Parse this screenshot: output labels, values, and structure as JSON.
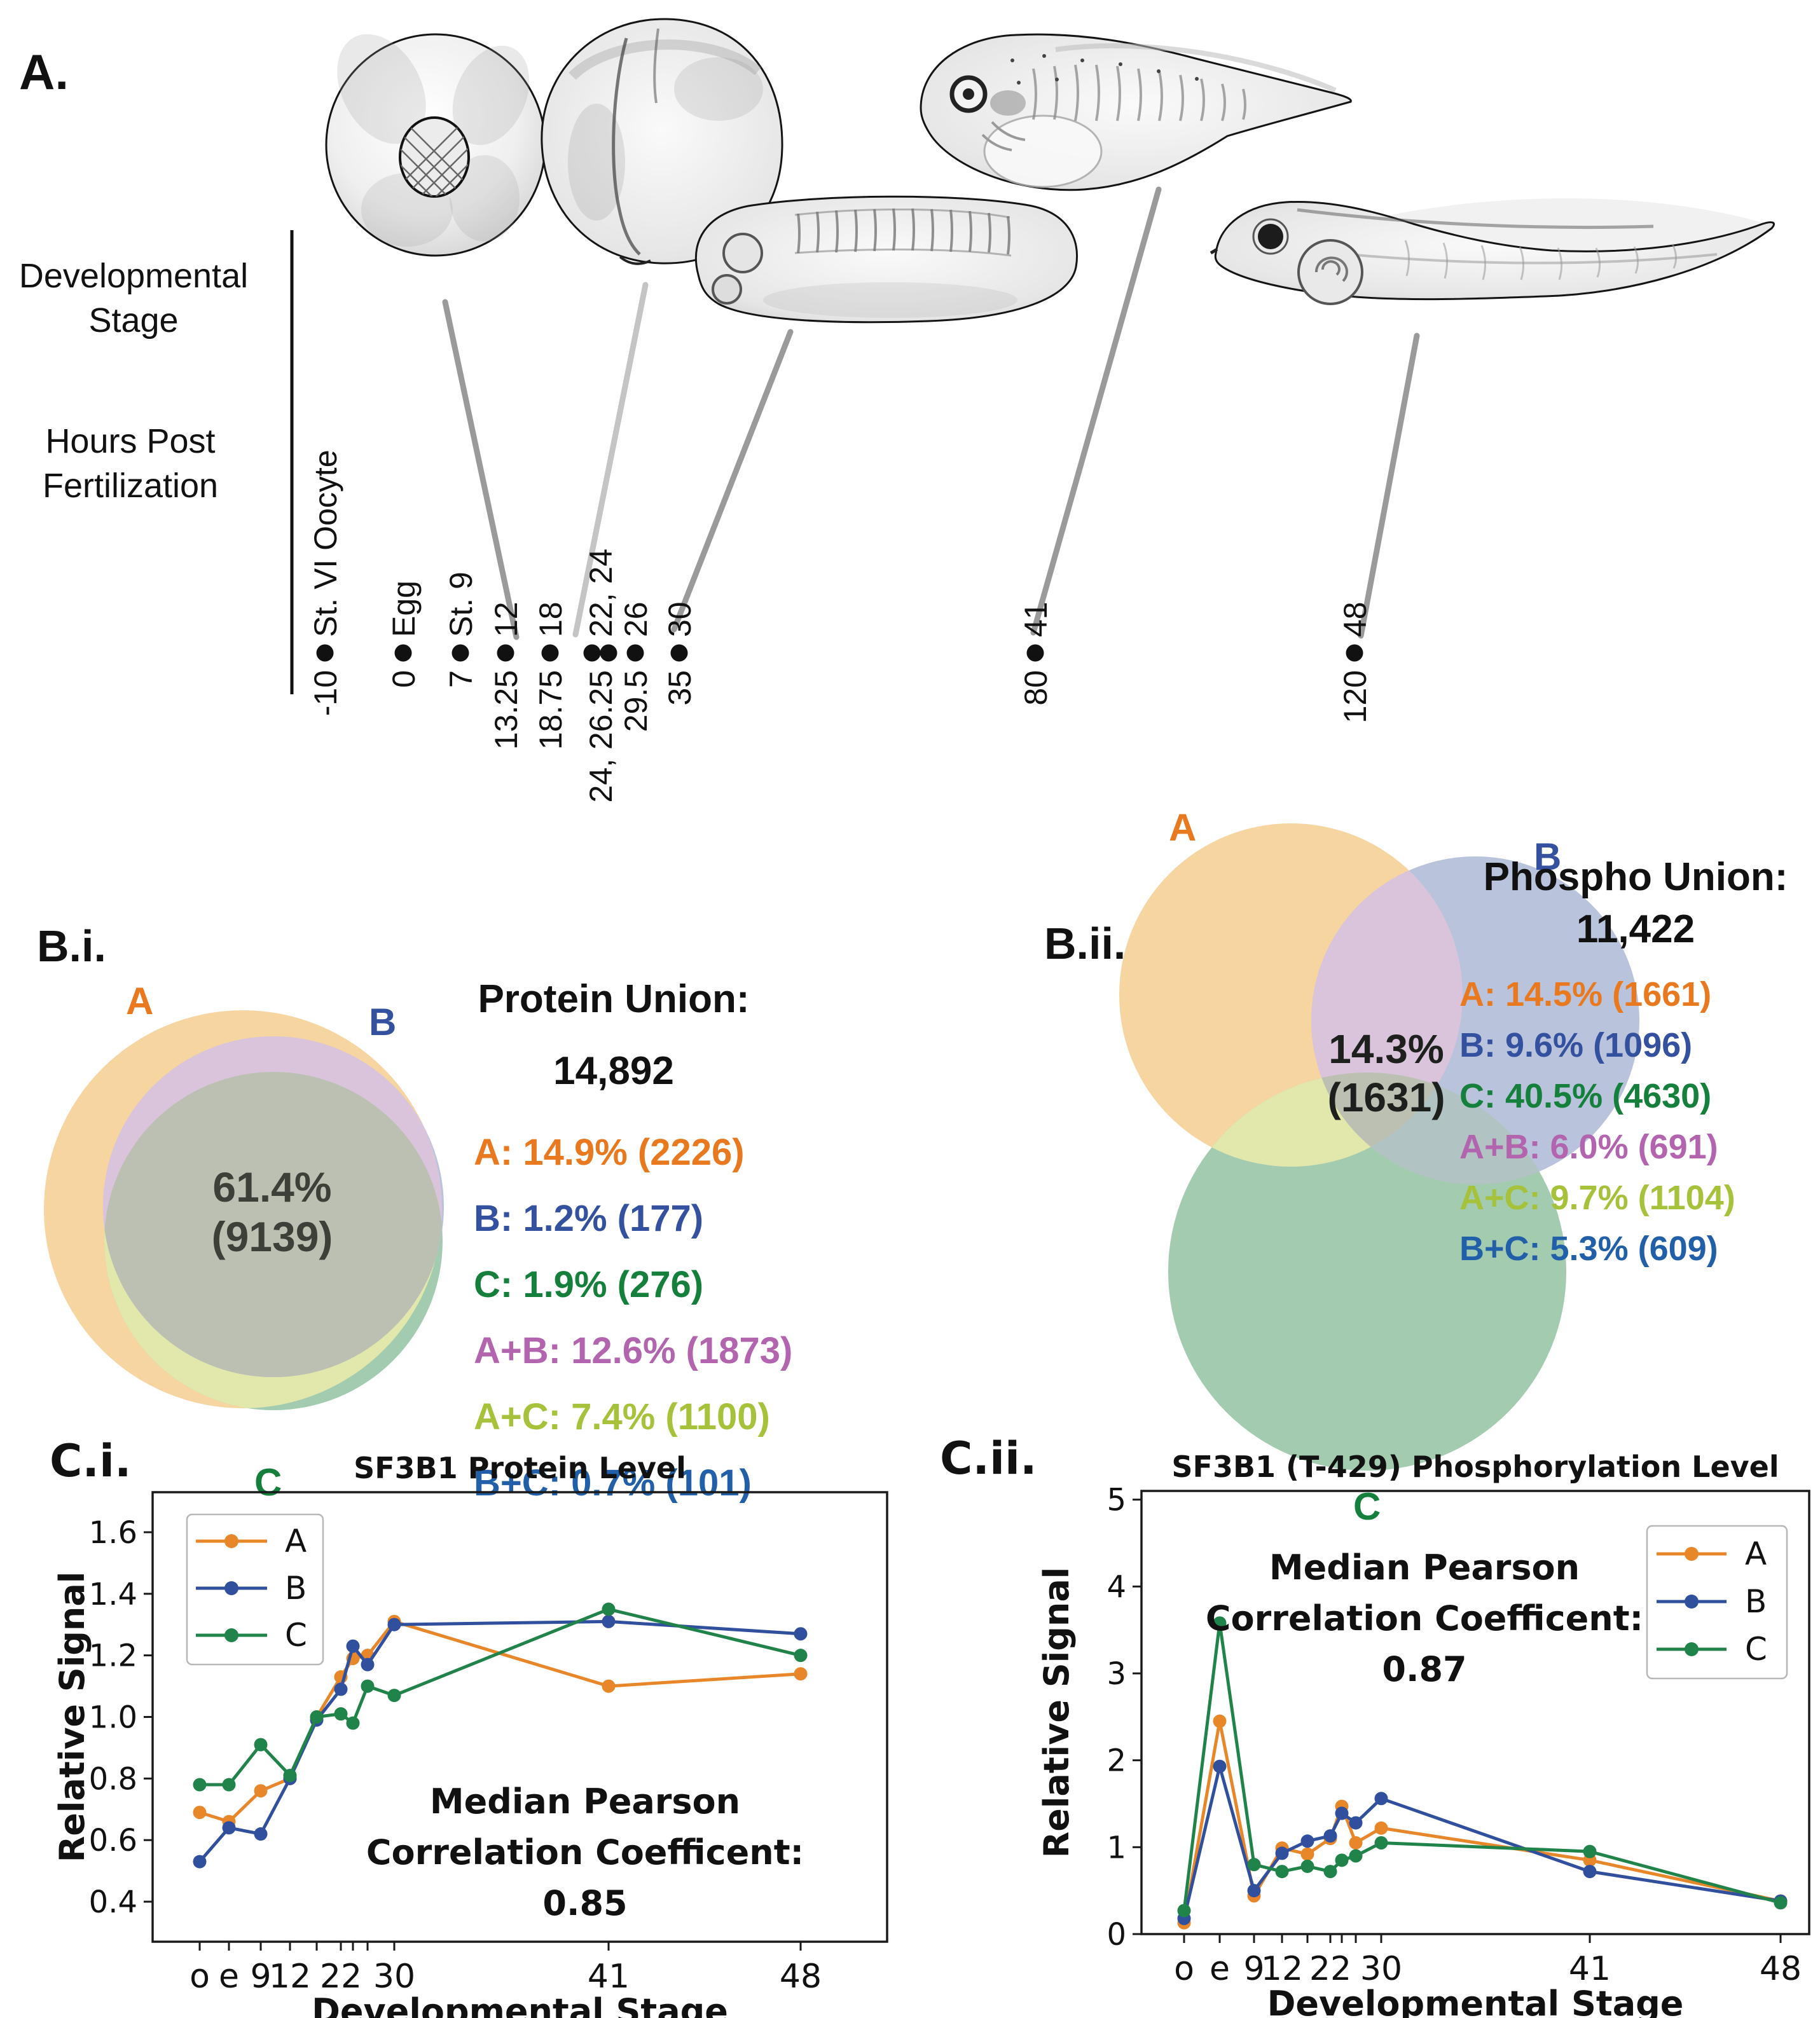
{
  "figure": {
    "panel_a": {
      "label": "A.",
      "row_labels": {
        "stage_line1": "Developmental",
        "stage_line2": "Stage",
        "hours_line1": "Hours Post",
        "hours_line2": "Fertilization"
      },
      "timeline": [
        {
          "stage": "St. VI Oocyte",
          "hours": "-10",
          "dots": 1
        },
        {
          "stage": "Egg",
          "hours": "0",
          "dots": 1
        },
        {
          "stage": "St. 9",
          "hours": "7",
          "dots": 1
        },
        {
          "stage": "12",
          "hours": "13.25",
          "dots": 1
        },
        {
          "stage": "18",
          "hours": "18.75",
          "dots": 1
        },
        {
          "stage": "22, 24",
          "hours": "24, 26.25",
          "dots": 2
        },
        {
          "stage": "26",
          "hours": "29.5",
          "dots": 1
        },
        {
          "stage": "30",
          "hours": "35",
          "dots": 1
        },
        {
          "stage": "41",
          "hours": "80",
          "dots": 1
        },
        {
          "stage": "48",
          "hours": "120",
          "dots": 1
        }
      ],
      "illustrations": [
        "stage-vi-oocyte",
        "blastula-embryo",
        "neurula-embryo",
        "tailbud-tadpole",
        "swimming-tadpole"
      ]
    },
    "venn_fills": {
      "a": "#f6d5a1",
      "b": "#b9c3dc",
      "c": "#a3cbb0",
      "ab": "#d9c4dc",
      "ac": "#e2e7ab",
      "bc": "#b2c3c4",
      "abc": "#bcc0b3"
    },
    "panel_bi": {
      "label": "B.i.",
      "union_title": "Protein Union:",
      "union_value": "14,892",
      "center_line1": "61.4%",
      "center_line2": "(9139)",
      "center_color": "#3c4039",
      "set_a": "A",
      "set_b": "B",
      "set_c": "C",
      "legend": [
        {
          "text": "A: 14.9% (2226)",
          "color": "#e8791e"
        },
        {
          "text": "B: 1.2% (177)",
          "color": "#33519e"
        },
        {
          "text": "C: 1.9% (276)",
          "color": "#157f3c"
        },
        {
          "text": "A+B: 12.6% (1873)",
          "color": "#b264ae"
        },
        {
          "text": "A+C: 7.4% (1100)",
          "color": "#a6c23a"
        },
        {
          "text": "B+C: 0.7% (101)",
          "color": "#2160a8"
        }
      ]
    },
    "panel_bii": {
      "label": "B.ii.",
      "union_title": "Phospho Union:",
      "union_value": "11,422",
      "center_line1": "14.3%",
      "center_line2": "(1631)",
      "center_color": "#1e201e",
      "set_a": "A",
      "set_b": "B",
      "set_c": "C",
      "legend": [
        {
          "text": "A: 14.5% (1661)",
          "color": "#e8791e"
        },
        {
          "text": "B: 9.6% (1096)",
          "color": "#33519e"
        },
        {
          "text": "C: 40.5% (4630)",
          "color": "#157f3c"
        },
        {
          "text": "A+B: 6.0% (691)",
          "color": "#b264ae"
        },
        {
          "text": "A+C: 9.7% (1104)",
          "color": "#a6c23a"
        },
        {
          "text": "B+C: 5.3% (609)",
          "color": "#2160a8"
        }
      ]
    }
  },
  "chart_data": [
    {
      "panel_label": "C.i.",
      "type": "line",
      "title": "SF3B1 Protein Level",
      "xlabel": "Developmental Stage",
      "ylabel": "Relative Signal",
      "stages": [
        "o",
        "e",
        "9",
        "12",
        "18",
        "22",
        "24",
        "26",
        "30",
        "41",
        "48"
      ],
      "x_hours": [
        -10,
        0,
        7,
        13.25,
        18.75,
        24,
        26.25,
        29.5,
        35,
        80,
        120
      ],
      "x_tick_indices": [
        0,
        1,
        2,
        3,
        5,
        8,
        9,
        10
      ],
      "x_tick_labels": [
        "o",
        "e",
        "9",
        "12",
        "22",
        "30",
        "41",
        "48"
      ],
      "yticks": [
        "0.4",
        "0.6",
        "0.8",
        "1.0",
        "1.2",
        "1.4",
        "1.6"
      ],
      "ytick_values": [
        0.4,
        0.6,
        0.8,
        1.0,
        1.2,
        1.4,
        1.6
      ],
      "ylim": [
        0.27,
        1.73
      ],
      "grid": false,
      "legend_position": "upper-left",
      "annotation": [
        "Median Pearson",
        "Correlation Coefficent:",
        "0.85"
      ],
      "series": [
        {
          "name": "A",
          "color": "#e8872a",
          "values": [
            0.69,
            0.66,
            0.76,
            0.8,
            1.0,
            1.13,
            1.19,
            1.2,
            1.31,
            1.1,
            1.14
          ]
        },
        {
          "name": "B",
          "color": "#30509e",
          "values": [
            0.53,
            0.64,
            0.62,
            0.8,
            0.99,
            1.09,
            1.23,
            1.17,
            1.3,
            1.31,
            1.27
          ]
        },
        {
          "name": "C",
          "color": "#208349",
          "values": [
            0.78,
            0.78,
            0.91,
            0.81,
            1.0,
            1.01,
            0.98,
            1.1,
            1.07,
            1.35,
            1.2
          ]
        }
      ]
    },
    {
      "panel_label": "C.ii.",
      "type": "line",
      "title": "SF3B1 (T-429) Phosphorylation Level",
      "xlabel": "Developmental Stage",
      "ylabel": "Relative Signal",
      "stages": [
        "o",
        "e",
        "9",
        "12",
        "18",
        "22",
        "24",
        "26",
        "30",
        "41",
        "48"
      ],
      "x_hours": [
        -10,
        0,
        7,
        13.25,
        18.75,
        24,
        26.25,
        29.5,
        35,
        80,
        120
      ],
      "x_tick_indices": [
        0,
        1,
        2,
        3,
        5,
        8,
        9,
        10
      ],
      "x_tick_labels": [
        "o",
        "e",
        "9",
        "12",
        "22",
        "30",
        "41",
        "48"
      ],
      "yticks": [
        "0",
        "1",
        "2",
        "3",
        "4",
        "5"
      ],
      "ytick_values": [
        0,
        1,
        2,
        3,
        4,
        5
      ],
      "ylim": [
        0,
        5.1
      ],
      "grid": false,
      "legend_position": "upper-right",
      "annotation": [
        "Median Pearson",
        "Correlation Coefficent:",
        "0.87"
      ],
      "series": [
        {
          "name": "A",
          "color": "#e8872a",
          "values": [
            0.13,
            2.45,
            0.44,
            0.99,
            0.92,
            1.1,
            1.47,
            1.05,
            1.22,
            0.85,
            0.38
          ]
        },
        {
          "name": "B",
          "color": "#30509e",
          "values": [
            0.18,
            1.93,
            0.5,
            0.93,
            1.07,
            1.13,
            1.39,
            1.28,
            1.56,
            0.72,
            0.38
          ]
        },
        {
          "name": "C",
          "color": "#208349",
          "values": [
            0.27,
            3.58,
            0.8,
            0.72,
            0.78,
            0.72,
            0.85,
            0.9,
            1.05,
            0.95,
            0.36
          ]
        }
      ]
    }
  ]
}
